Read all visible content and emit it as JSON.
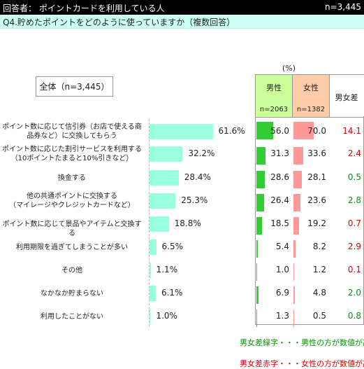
{
  "header": {
    "respondent": "回答者： ポイントカードを利用している人",
    "n": "n=3,445"
  },
  "question": "Q4.貯めたポイントをどのように使っていますか（複数回答）",
  "unit": "(%)",
  "total_label": "全体（n=3,445）",
  "columns": {
    "male": {
      "name": "男性",
      "n": "n=2063"
    },
    "female": {
      "name": "女性",
      "n": "n=1382"
    },
    "diff": {
      "name": "男女差"
    }
  },
  "legend": {
    "green": "男女差緑字・・・男性の方が数値が高い",
    "red": "男女差赤字・・・女性の方が数値が高い"
  },
  "colors": {
    "bar": "#99ffdf",
    "male": "#33cc33",
    "female": "#ff9999",
    "diff_green": "#009900",
    "diff_red": "#dd0000"
  },
  "chart_data": {
    "type": "bar",
    "categories": [
      [
        "ポイント数に応じて信引券（お店で使える商",
        "品券など）に交換してもらう"
      ],
      [
        "ポイント数に応じた割引サービスを利用する",
        "（10ポイントたまると10%引きなど）"
      ],
      [
        "換金する"
      ],
      [
        "他の共通ポイントに交換する",
        "（マイレージやクレジットカードなど）"
      ],
      [
        "ポイント数に応じて景品やアイテムと交換する"
      ],
      [
        "利用期限を過ぎてしまうことが多い"
      ],
      [
        "その他"
      ],
      [
        "なかなか貯まらない"
      ],
      [
        "利用したことがない"
      ]
    ],
    "series": [
      {
        "name": "全体（n=3,445）",
        "values": [
          61.6,
          32.2,
          28.4,
          25.3,
          18.8,
          6.5,
          1.1,
          6.1,
          1.0
        ]
      },
      {
        "name": "男性",
        "values": [
          56.0,
          31.3,
          28.6,
          26.4,
          18.5,
          5.4,
          1.0,
          6.9,
          1.3
        ]
      },
      {
        "name": "女性",
        "values": [
          70.0,
          33.6,
          28.1,
          23.6,
          19.2,
          8.2,
          1.2,
          4.8,
          0.5
        ]
      }
    ],
    "diff": [
      {
        "value": "14.1",
        "color": "red"
      },
      {
        "value": "2.4",
        "color": "red"
      },
      {
        "value": "0.5",
        "color": "green"
      },
      {
        "value": "2.8",
        "color": "green"
      },
      {
        "value": "0.7",
        "color": "red"
      },
      {
        "value": "2.9",
        "color": "red"
      },
      {
        "value": "0.1",
        "color": "red"
      },
      {
        "value": "2.0",
        "color": "green"
      },
      {
        "value": "0.8",
        "color": "green"
      }
    ],
    "value_format": "{v}%",
    "ylabel": "(%)"
  }
}
